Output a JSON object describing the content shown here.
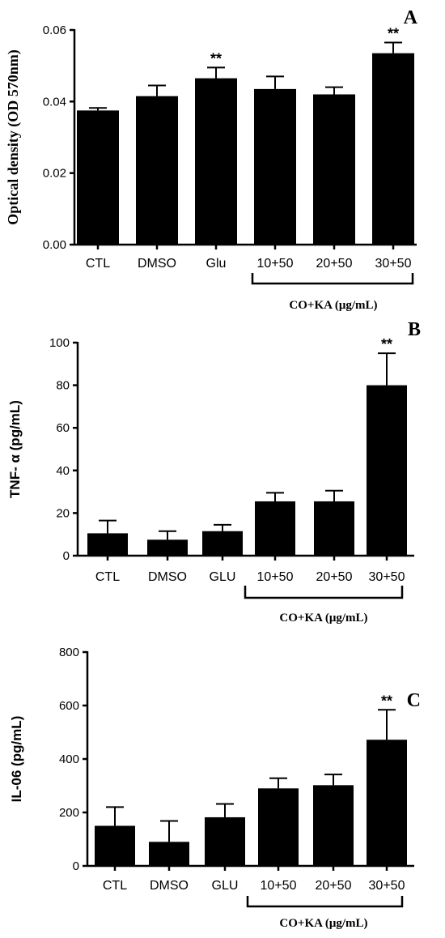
{
  "chart_data": [
    {
      "panel": "A",
      "type": "bar",
      "ylabel": "Optical density (OD 570nm)",
      "ylim": [
        0,
        0.06
      ],
      "yticks": [
        "0.00",
        "0.02",
        "0.04",
        "0.06"
      ],
      "categories": [
        "CTL",
        "DMSO",
        "Glu",
        "10+50",
        "20+50",
        "30+50"
      ],
      "values": [
        0.0375,
        0.0415,
        0.0465,
        0.0435,
        0.042,
        0.0535
      ],
      "errors": [
        0.0007,
        0.003,
        0.003,
        0.0035,
        0.002,
        0.003
      ],
      "significance": [
        "",
        "",
        "**",
        "",
        "",
        "**"
      ],
      "group_label": "CO+KA  (μg/mL)"
    },
    {
      "panel": "B",
      "type": "bar",
      "ylabel": "TNF- α (pg/mL)",
      "ylim": [
        0,
        100
      ],
      "yticks": [
        "0",
        "20",
        "40",
        "60",
        "80",
        "100"
      ],
      "categories": [
        "CTL",
        "DMSO",
        "GLU",
        "10+50",
        "20+50",
        "30+50"
      ],
      "values": [
        10.5,
        7.5,
        11.5,
        25.5,
        25.5,
        80
      ],
      "errors": [
        6,
        4,
        3,
        4,
        5,
        15
      ],
      "significance": [
        "",
        "",
        "",
        "",
        "",
        "**"
      ],
      "group_label": "CO+KA  (μg/mL)"
    },
    {
      "panel": "C",
      "type": "bar",
      "ylabel": "IL-06 (pg/mL)",
      "ylim": [
        0,
        800
      ],
      "yticks": [
        "0",
        "200",
        "400",
        "600",
        "800"
      ],
      "categories": [
        "CTL",
        "DMSO",
        "GLU",
        "10+50",
        "20+50",
        "30+50"
      ],
      "values": [
        150,
        90,
        182,
        290,
        302,
        472
      ],
      "errors": [
        70,
        78,
        50,
        38,
        40,
        112
      ],
      "significance": [
        "",
        "",
        "",
        "",
        "",
        "**"
      ],
      "group_label": "CO+KA  (μg/mL)"
    }
  ]
}
